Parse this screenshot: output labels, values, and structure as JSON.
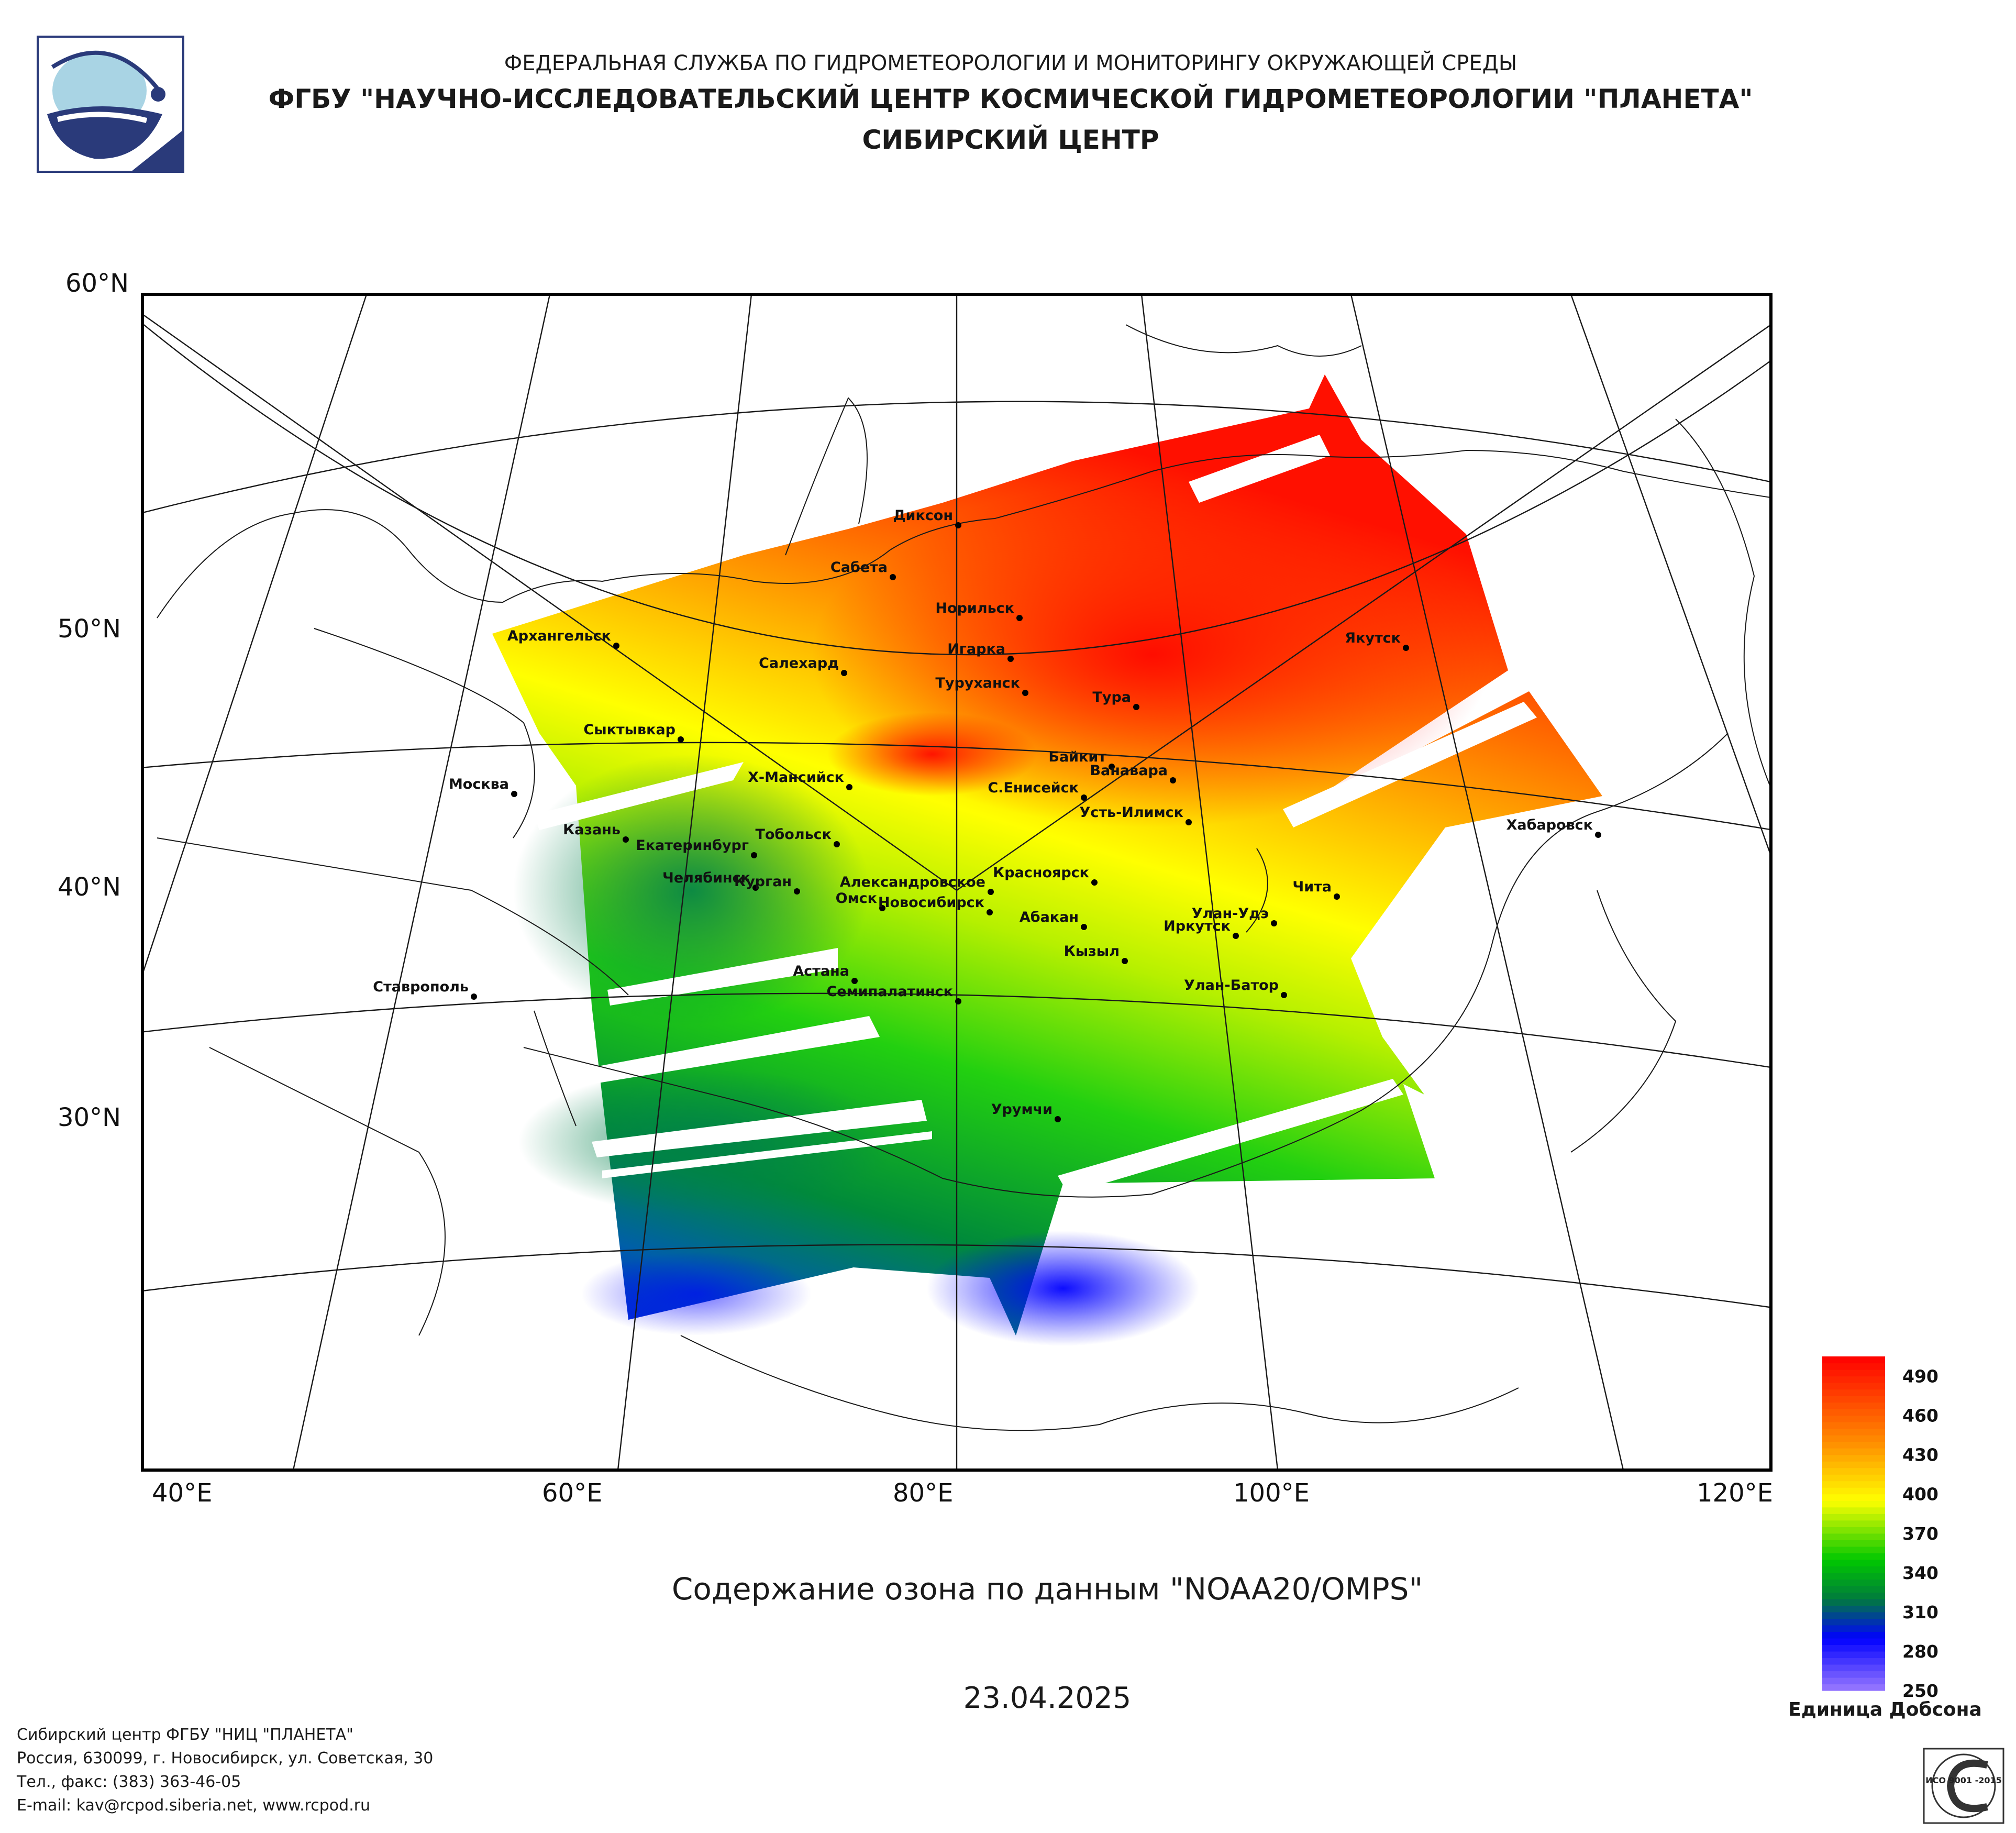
{
  "header": {
    "line1": "ФЕДЕРАЛЬНАЯ СЛУЖБА ПО ГИДРОМЕТЕОРОЛОГИИ И МОНИТОРИНГУ ОКРУЖАЮЩЕЙ СРЕДЫ",
    "line2": "ФГБУ \"НАУЧНО-ИССЛЕДОВАТЕЛЬСКИЙ ЦЕНТР КОСМИЧЕСКОЙ ГИДРОМЕТЕОРОЛОГИИ \"ПЛАНЕТА\"",
    "line3": "СИБИРСКИЙ ЦЕНТР",
    "logo_icon": "planeta-logo-icon"
  },
  "map": {
    "title": "Содержание озона по данным \"NOAA20/OMPS\"",
    "date": "23.04.2025",
    "lat_labels": [
      "60°N",
      "50°N",
      "40°N",
      "30°N"
    ],
    "lon_labels": [
      "40°E",
      "60°E",
      "80°E",
      "100°E",
      "120°E"
    ],
    "cities": [
      "Диксон",
      "Сабета",
      "Норильск",
      "Игарка",
      "Салехард",
      "Туруханск",
      "Тура",
      "Якутск",
      "Архангельск",
      "Сыктывкар",
      "Байкит",
      "Ванавара",
      "Х-Мансийск",
      "С.Енисейск",
      "Москва",
      "Усть-Илимск",
      "Казань",
      "Тобольск",
      "Екатеринбург",
      "Хабаровск",
      "Челябинск",
      "Курган",
      "Александровское",
      "Омск",
      "Красноярск",
      "Новосибирск",
      "Абакан",
      "Улан-Удэ",
      "Чита",
      "Иркутск",
      "Кызыл",
      "Астана",
      "Семипалатинск",
      "Ставрополь",
      "Улан-Батор",
      "Урумчи"
    ]
  },
  "legend": {
    "unit": "Единица Добсона",
    "ticks": [
      490,
      460,
      430,
      400,
      370,
      340,
      310,
      280,
      250
    ],
    "range": [
      250,
      505
    ],
    "colors": {
      "high": "#ff0000",
      "orange": "#ff8c00",
      "yellow": "#ffff00",
      "green": "#00c800",
      "darkgreen": "#007a3d",
      "blue": "#0000ff",
      "violet": "#9a7aff"
    }
  },
  "footer": {
    "line1": "Сибирский центр ФГБУ \"НИЦ \"ПЛАНЕТА\"",
    "line2": "Россия, 630099, г. Новосибирск, ул. Советская, 30",
    "line3": "Тел., факс: (383) 363-46-05",
    "line4": "E-mail: kav@rcpod.siberia.net, www.rcpod.ru",
    "iso_text": "ИСО 9001 -2015",
    "iso_icon": "iso-certification-seal-icon"
  }
}
